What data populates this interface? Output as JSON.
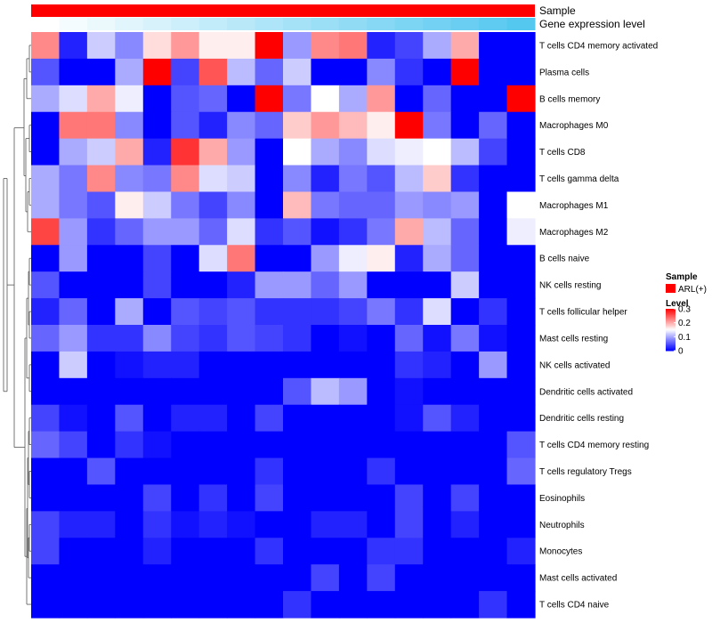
{
  "chart_data": {
    "type": "heatmap",
    "title": "",
    "annotation_rows": [
      {
        "name": "Sample",
        "label": "Sample",
        "color": "#ff0000"
      },
      {
        "name": "Gene expression level",
        "label": "Gene expression level",
        "colors": [
          "#ffffff",
          "#55c8f0"
        ]
      }
    ],
    "row_labels": [
      "T cells CD4 memory activated",
      "Plasma cells",
      "B cells memory",
      "Macrophages M0",
      "T cells CD8",
      "T cells gamma delta",
      "Macrophages M1",
      "Macrophages M2",
      "B cells naive",
      "NK cells resting",
      "T cells follicular helper",
      "Mast cells resting",
      "NK cells activated",
      "Dendritic cells activated",
      "Dendritic cells resting",
      "T cells CD4 memory resting",
      "T cells regulatory  Tregs",
      "Eosinophils",
      "Neutrophils",
      "Monocytes",
      "Mast cells activated",
      "T cells CD4 naive"
    ],
    "n_columns": 18,
    "values": [
      [
        0.22,
        0.02,
        0.12,
        0.08,
        0.17,
        0.21,
        0.16,
        0.16,
        0.31,
        0.09,
        0.22,
        0.23,
        0.02,
        0.04,
        0.1,
        0.2,
        0.0,
        0.0
      ],
      [
        0.05,
        0.0,
        0.0,
        0.1,
        0.3,
        0.04,
        0.25,
        0.11,
        0.06,
        0.12,
        0.0,
        0.0,
        0.08,
        0.03,
        0.0,
        0.3,
        0.0,
        0.0
      ],
      [
        0.1,
        0.13,
        0.2,
        0.14,
        0.0,
        0.05,
        0.06,
        0.0,
        0.3,
        0.07,
        0.15,
        0.1,
        0.21,
        0.0,
        0.06,
        0.0,
        0.0,
        0.3
      ],
      [
        0.0,
        0.23,
        0.23,
        0.08,
        0.0,
        0.05,
        0.02,
        0.08,
        0.06,
        0.18,
        0.21,
        0.19,
        0.16,
        0.31,
        0.07,
        0.0,
        0.06,
        0.0
      ],
      [
        0.0,
        0.1,
        0.12,
        0.2,
        0.02,
        0.27,
        0.2,
        0.09,
        0.0,
        0.15,
        0.1,
        0.08,
        0.13,
        0.14,
        0.15,
        0.11,
        0.04,
        0.0
      ],
      [
        0.1,
        0.07,
        0.22,
        0.08,
        0.07,
        0.22,
        0.13,
        0.12,
        0.0,
        0.08,
        0.02,
        0.07,
        0.05,
        0.11,
        0.18,
        0.03,
        0.0,
        0.0
      ],
      [
        0.1,
        0.07,
        0.05,
        0.16,
        0.12,
        0.07,
        0.04,
        0.08,
        0.0,
        0.19,
        0.07,
        0.06,
        0.06,
        0.09,
        0.08,
        0.09,
        0.0,
        0.15
      ],
      [
        0.26,
        0.09,
        0.03,
        0.06,
        0.09,
        0.09,
        0.06,
        0.13,
        0.03,
        0.05,
        0.01,
        0.03,
        0.07,
        0.2,
        0.11,
        0.06,
        0.0,
        0.14
      ],
      [
        0.0,
        0.09,
        0.0,
        0.0,
        0.04,
        0.0,
        0.13,
        0.23,
        0.0,
        0.0,
        0.09,
        0.14,
        0.16,
        0.02,
        0.1,
        0.06,
        0.0,
        0.0
      ],
      [
        0.05,
        0.0,
        0.0,
        0.0,
        0.04,
        0.0,
        0.0,
        0.02,
        0.09,
        0.09,
        0.06,
        0.09,
        0.0,
        0.0,
        0.0,
        0.12,
        0.0,
        0.0
      ],
      [
        0.02,
        0.06,
        0.0,
        0.1,
        0.0,
        0.05,
        0.04,
        0.05,
        0.03,
        0.03,
        0.03,
        0.04,
        0.07,
        0.03,
        0.13,
        0.0,
        0.03,
        0.0
      ],
      [
        0.06,
        0.09,
        0.03,
        0.03,
        0.08,
        0.04,
        0.03,
        0.05,
        0.04,
        0.03,
        0.0,
        0.01,
        0.0,
        0.06,
        0.01,
        0.07,
        0.01,
        0.0
      ],
      [
        0.0,
        0.12,
        0.0,
        0.01,
        0.02,
        0.02,
        0.0,
        0.0,
        0.0,
        0.0,
        0.0,
        0.0,
        0.0,
        0.03,
        0.02,
        0.0,
        0.09,
        0.0
      ],
      [
        0.0,
        0.0,
        0.0,
        0.0,
        0.0,
        0.0,
        0.0,
        0.0,
        0.0,
        0.05,
        0.11,
        0.09,
        0.0,
        0.01,
        0.0,
        0.0,
        0.0,
        0.0
      ],
      [
        0.04,
        0.01,
        0.0,
        0.05,
        0.0,
        0.02,
        0.02,
        0.0,
        0.04,
        0.0,
        0.0,
        0.0,
        0.0,
        0.01,
        0.05,
        0.02,
        0.0,
        0.0
      ],
      [
        0.06,
        0.04,
        0.0,
        0.03,
        0.01,
        0.0,
        0.0,
        0.0,
        0.0,
        0.0,
        0.0,
        0.0,
        0.0,
        0.0,
        0.0,
        0.0,
        0.0,
        0.05
      ],
      [
        0.0,
        0.0,
        0.05,
        0.0,
        0.0,
        0.0,
        0.0,
        0.0,
        0.03,
        0.0,
        0.0,
        0.0,
        0.03,
        0.0,
        0.0,
        0.0,
        0.0,
        0.06
      ],
      [
        0.0,
        0.0,
        0.0,
        0.0,
        0.04,
        0.0,
        0.03,
        0.0,
        0.04,
        0.0,
        0.0,
        0.0,
        0.0,
        0.04,
        0.0,
        0.04,
        0.0,
        0.0
      ],
      [
        0.04,
        0.02,
        0.02,
        0.0,
        0.03,
        0.01,
        0.02,
        0.01,
        0.0,
        0.0,
        0.02,
        0.02,
        0.0,
        0.04,
        0.0,
        0.02,
        0.0,
        0.0
      ],
      [
        0.04,
        0.0,
        0.0,
        0.0,
        0.02,
        0.0,
        0.0,
        0.0,
        0.03,
        0.0,
        0.0,
        0.0,
        0.03,
        0.03,
        0.0,
        0.0,
        0.0,
        0.02
      ],
      [
        0.0,
        0.0,
        0.0,
        0.0,
        0.0,
        0.0,
        0.0,
        0.0,
        0.0,
        0.0,
        0.04,
        0.0,
        0.04,
        0.0,
        0.0,
        0.0,
        0.0,
        0.0
      ],
      [
        0.0,
        0.0,
        0.0,
        0.0,
        0.0,
        0.0,
        0.0,
        0.0,
        0.0,
        0.03,
        0.0,
        0.0,
        0.0,
        0.0,
        0.0,
        0.0,
        0.03,
        0.0
      ]
    ],
    "color_scale": {
      "min": 0,
      "mid": 0.15,
      "max": 0.3,
      "low": "#0000ff",
      "midColor": "#ffffff",
      "high": "#ff0000"
    },
    "legend": {
      "sample_title": "Sample",
      "sample_entry": "ARL(+)",
      "level_title": "Level",
      "level_ticks": [
        "0.3",
        "0.2",
        "0.1",
        "0"
      ],
      "level_tick_values": [
        0.3,
        0.2,
        0.1,
        0
      ]
    },
    "dendrogram": "row clustering tree on left"
  }
}
